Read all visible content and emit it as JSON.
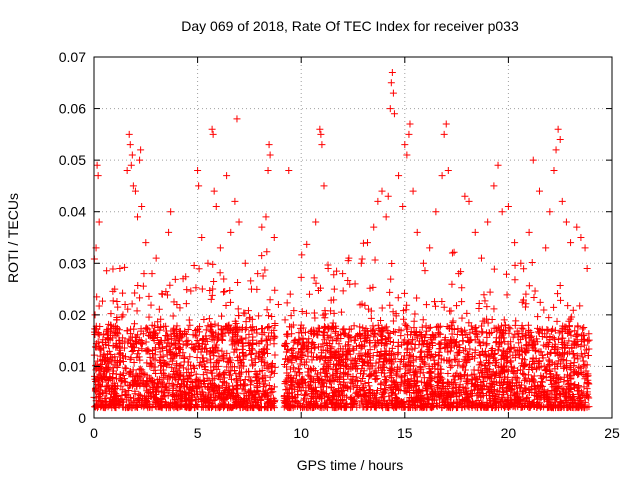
{
  "chart_data": {
    "type": "scatter",
    "title": "Day 069 of 2018, Rate Of TEC Index for receiver p033",
    "xlabel": "GPS time / hours",
    "ylabel": "ROTI / TECUs",
    "xlim": [
      0,
      25
    ],
    "ylim": [
      0,
      0.07
    ],
    "xticks": [
      0,
      5,
      10,
      15,
      20,
      25
    ],
    "xtick_labels": [
      "0",
      "5",
      "10",
      "15",
      "20",
      "25"
    ],
    "yticks": [
      0,
      0.01,
      0.02,
      0.03,
      0.04,
      0.05,
      0.06,
      0.07
    ],
    "ytick_labels": [
      "0",
      "0.01",
      "0.02",
      "0.03",
      "0.04",
      "0.05",
      "0.06",
      "0.07"
    ],
    "grid": true,
    "marker": "+",
    "marker_color": "#ff0000",
    "series": [
      {
        "name": "p033",
        "points": [
          [
            0.0,
            0.004
          ],
          [
            0.05,
            0.02
          ],
          [
            0.1,
            0.033
          ],
          [
            0.15,
            0.049
          ],
          [
            0.2,
            0.047
          ],
          [
            0.25,
            0.038
          ],
          [
            0.3,
            0.012
          ],
          [
            0.5,
            0.009
          ],
          [
            0.8,
            0.018
          ],
          [
            1.0,
            0.025
          ],
          [
            1.2,
            0.015
          ],
          [
            1.5,
            0.022
          ],
          [
            1.6,
            0.048
          ],
          [
            1.7,
            0.055
          ],
          [
            1.75,
            0.053
          ],
          [
            1.8,
            0.049
          ],
          [
            1.85,
            0.051
          ],
          [
            1.9,
            0.045
          ],
          [
            2.0,
            0.044
          ],
          [
            2.1,
            0.039
          ],
          [
            2.2,
            0.05
          ],
          [
            2.25,
            0.052
          ],
          [
            2.3,
            0.041
          ],
          [
            2.5,
            0.034
          ],
          [
            2.8,
            0.028
          ],
          [
            3.0,
            0.031
          ],
          [
            3.3,
            0.024
          ],
          [
            3.6,
            0.036
          ],
          [
            3.7,
            0.04
          ],
          [
            4.0,
            0.022
          ],
          [
            4.3,
            0.027
          ],
          [
            4.6,
            0.019
          ],
          [
            5.0,
            0.048
          ],
          [
            5.05,
            0.045
          ],
          [
            5.2,
            0.035
          ],
          [
            5.5,
            0.03
          ],
          [
            5.7,
            0.056
          ],
          [
            5.75,
            0.055
          ],
          [
            5.8,
            0.044
          ],
          [
            5.9,
            0.041
          ],
          [
            6.1,
            0.033
          ],
          [
            6.4,
            0.047
          ],
          [
            6.6,
            0.036
          ],
          [
            6.8,
            0.042
          ],
          [
            6.9,
            0.058
          ],
          [
            7.0,
            0.038
          ],
          [
            7.3,
            0.03
          ],
          [
            7.6,
            0.025
          ],
          [
            7.9,
            0.028
          ],
          [
            8.1,
            0.037
          ],
          [
            8.3,
            0.039
          ],
          [
            8.4,
            0.048
          ],
          [
            8.45,
            0.053
          ],
          [
            8.5,
            0.051
          ],
          [
            8.7,
            0.035
          ],
          [
            8.9,
            0.022
          ],
          [
            9.2,
            0.014
          ],
          [
            9.4,
            0.048
          ],
          [
            9.6,
            0.012
          ],
          [
            10.0,
            0.018
          ],
          [
            10.4,
            0.024
          ],
          [
            10.7,
            0.038
          ],
          [
            10.9,
            0.056
          ],
          [
            10.95,
            0.055
          ],
          [
            11.0,
            0.053
          ],
          [
            11.1,
            0.045
          ],
          [
            11.3,
            0.029
          ],
          [
            11.6,
            0.025
          ],
          [
            12.0,
            0.028
          ],
          [
            12.3,
            0.031
          ],
          [
            12.6,
            0.026
          ],
          [
            12.9,
            0.03
          ],
          [
            13.2,
            0.034
          ],
          [
            13.5,
            0.037
          ],
          [
            13.7,
            0.042
          ],
          [
            13.9,
            0.044
          ],
          [
            14.1,
            0.039
          ],
          [
            14.2,
            0.043
          ],
          [
            14.3,
            0.06
          ],
          [
            14.35,
            0.065
          ],
          [
            14.4,
            0.067
          ],
          [
            14.45,
            0.063
          ],
          [
            14.5,
            0.059
          ],
          [
            14.7,
            0.047
          ],
          [
            14.9,
            0.041
          ],
          [
            15.0,
            0.053
          ],
          [
            15.1,
            0.051
          ],
          [
            15.2,
            0.055
          ],
          [
            15.25,
            0.057
          ],
          [
            15.4,
            0.044
          ],
          [
            15.6,
            0.036
          ],
          [
            15.9,
            0.03
          ],
          [
            16.2,
            0.033
          ],
          [
            16.5,
            0.04
          ],
          [
            16.8,
            0.047
          ],
          [
            16.9,
            0.055
          ],
          [
            17.0,
            0.057
          ],
          [
            17.1,
            0.048
          ],
          [
            17.3,
            0.032
          ],
          [
            17.6,
            0.028
          ],
          [
            17.9,
            0.043
          ],
          [
            18.1,
            0.042
          ],
          [
            18.4,
            0.036
          ],
          [
            18.7,
            0.031
          ],
          [
            19.0,
            0.038
          ],
          [
            19.3,
            0.045
          ],
          [
            19.5,
            0.049
          ],
          [
            19.7,
            0.04
          ],
          [
            20.0,
            0.041
          ],
          [
            20.3,
            0.034
          ],
          [
            20.6,
            0.03
          ],
          [
            21.0,
            0.036
          ],
          [
            21.2,
            0.05
          ],
          [
            21.5,
            0.044
          ],
          [
            21.8,
            0.033
          ],
          [
            22.0,
            0.04
          ],
          [
            22.2,
            0.048
          ],
          [
            22.3,
            0.052
          ],
          [
            22.4,
            0.056
          ],
          [
            22.5,
            0.054
          ],
          [
            22.6,
            0.042
          ],
          [
            22.8,
            0.038
          ],
          [
            23.0,
            0.034
          ],
          [
            23.3,
            0.037
          ],
          [
            23.5,
            0.035
          ],
          [
            23.7,
            0.033
          ],
          [
            23.8,
            0.029
          ]
        ]
      }
    ]
  }
}
